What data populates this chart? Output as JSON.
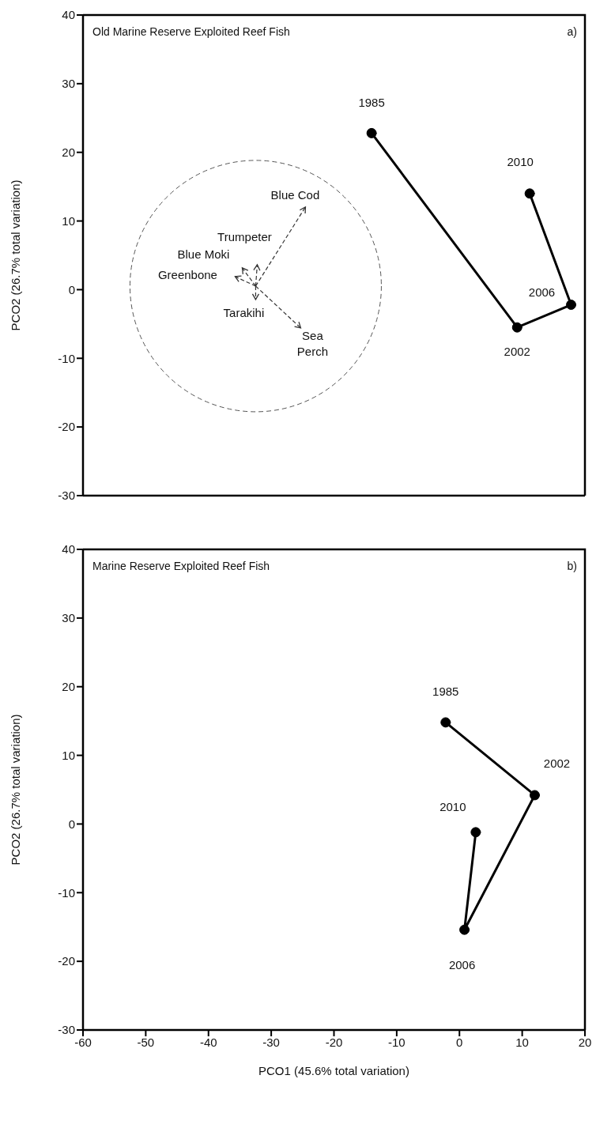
{
  "chart_data": [
    {
      "type": "line",
      "title": "Old Marine Reserve Exploited Reef Fish",
      "ylabel": "PCO2 (26.7% total variation)",
      "annotations": [
        "a)",
        {
          "text": "1985",
          "x": -14,
          "y": 22.8
        },
        {
          "text": "2010",
          "x": 11.2,
          "y": 14
        },
        {
          "text": "2006",
          "x": 17.8,
          "y": -2.2
        },
        {
          "text": "2002",
          "x": 9.2,
          "y": -5.5
        },
        "Blue Cod",
        "Trumpeter",
        "Blue Moki",
        "Greenbone",
        "Tarakihi",
        "Sea Perch"
      ],
      "series": [
        {
          "color": "#000000",
          "marker": "circle",
          "line_style": "solid",
          "x": [
            -14,
            9.2,
            17.8,
            11.2
          ],
          "values": [
            22.8,
            -5.5,
            -2.2,
            14
          ]
        }
      ],
      "xlim": [
        -60,
        20
      ],
      "xticks": [
        -60,
        -50,
        -40,
        -30,
        -20,
        -10,
        0,
        10,
        20
      ],
      "ylim": [
        -30,
        40
      ],
      "yticks": [
        -30,
        -20,
        -10,
        0,
        10,
        20,
        30,
        40
      ],
      "tick_labels": "y"
    },
    {
      "type": "line",
      "title": "Marine Reserve Exploited Reef Fish",
      "xlabel": "PCO1 (45.6% total variation)",
      "ylabel": "PCO2 (26.7% total variation)",
      "annotations": [
        "b)",
        {
          "text": "1985",
          "x": -2.2,
          "y": 14.8
        },
        {
          "text": "2002",
          "x": 12,
          "y": 4.2
        },
        {
          "text": "2010",
          "x": 2.6,
          "y": -1.2
        },
        {
          "text": "2006",
          "x": 0.8,
          "y": -15.4
        }
      ],
      "series": [
        {
          "color": "#000000",
          "marker": "circle",
          "line_style": "solid",
          "x": [
            -2.2,
            12,
            0.8,
            2.6
          ],
          "values": [
            14.8,
            4.2,
            -15.4,
            -1.2
          ]
        }
      ],
      "xlim": [
        -60,
        20
      ],
      "xticks": [
        -60,
        -50,
        -40,
        -30,
        -20,
        -10,
        0,
        10,
        20
      ],
      "ylim": [
        -30,
        40
      ],
      "yticks": [
        -30,
        -20,
        -10,
        0,
        10,
        20,
        30,
        40
      ]
    }
  ]
}
